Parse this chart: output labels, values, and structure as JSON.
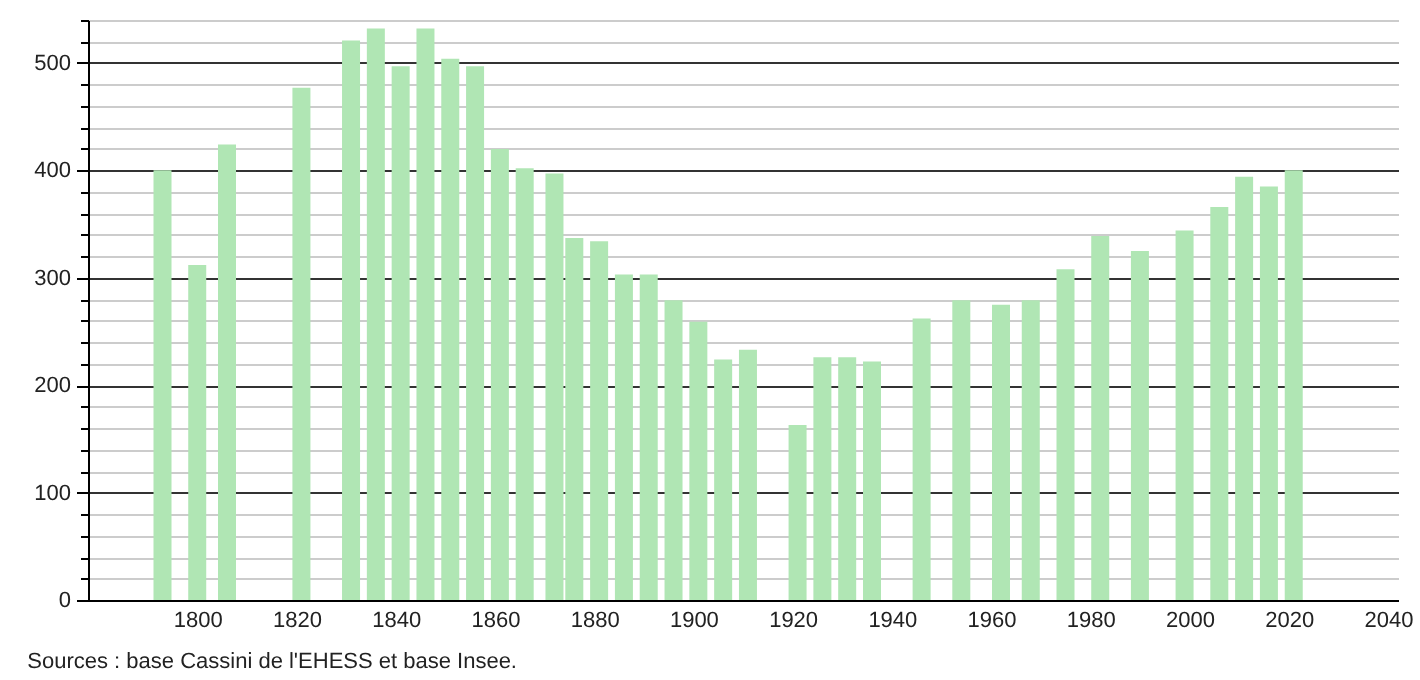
{
  "chart_data": {
    "type": "bar",
    "x": [
      1793,
      1800,
      1806,
      1821,
      1831,
      1836,
      1841,
      1846,
      1851,
      1856,
      1861,
      1866,
      1872,
      1876,
      1881,
      1886,
      1891,
      1896,
      1901,
      1906,
      1911,
      1921,
      1926,
      1931,
      1936,
      1946,
      1954,
      1962,
      1968,
      1975,
      1982,
      1990,
      1999,
      2006,
      2011,
      2016,
      2021
    ],
    "values": [
      400,
      312,
      424,
      477,
      521,
      532,
      497,
      532,
      504,
      497,
      420,
      402,
      397,
      337,
      334,
      303,
      303,
      279,
      259,
      224,
      233,
      163,
      226,
      226,
      222,
      262,
      279,
      275,
      279,
      308,
      339,
      325,
      344,
      366,
      394,
      385,
      400
    ],
    "color": "#b0e6b4",
    "xlim": [
      1780,
      2040
    ],
    "xticks": [
      1800,
      1820,
      1840,
      1860,
      1880,
      1900,
      1920,
      1940,
      1960,
      1980,
      2000,
      2020,
      2040
    ],
    "ylim": [
      0,
      540
    ],
    "yticks": [
      0,
      {
        "value": 20,
        "label": null
      },
      {
        "value": 40,
        "label": null
      },
      {
        "value": 60,
        "label": null
      },
      {
        "value": 80,
        "label": null
      },
      100,
      {
        "value": 120,
        "label": null
      },
      {
        "value": 140,
        "label": null
      },
      {
        "value": 160,
        "label": null
      },
      {
        "value": 180,
        "label": null
      },
      200,
      {
        "value": 220,
        "label": null
      },
      {
        "value": 240,
        "label": null
      },
      {
        "value": 260,
        "label": null
      },
      {
        "value": 280,
        "label": null
      },
      300,
      {
        "value": 320,
        "label": null
      },
      {
        "value": 340,
        "label": null
      },
      {
        "value": 360,
        "label": null
      },
      {
        "value": 380,
        "label": null
      },
      400,
      {
        "value": 420,
        "label": null
      },
      {
        "value": 440,
        "label": null
      },
      {
        "value": 460,
        "label": null
      },
      {
        "value": 480,
        "label": null
      },
      500,
      {
        "value": 520,
        "label": null
      },
      {
        "value": 540,
        "label": null
      }
    ],
    "grid": "y",
    "annotations": [
      "Sources : base Cassini de l'EHESS et base Insee."
    ]
  }
}
